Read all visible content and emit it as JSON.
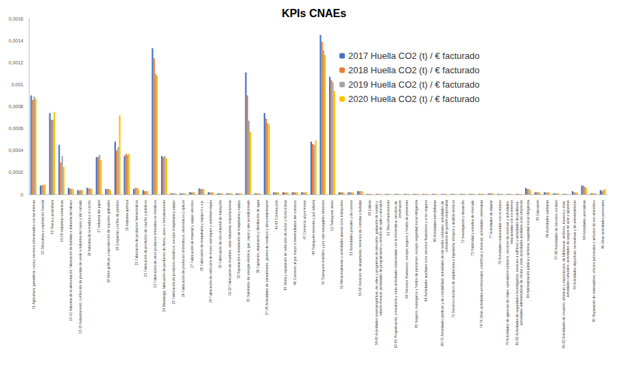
{
  "chart_data": {
    "type": "bar",
    "title": "KPIs CNAEs",
    "categories": [
      "01 Agricultura, ganadería, caza y servicios relacionados con las mismas",
      "02 Silvicultura y explotación forestal",
      "03 Pesca y acuicultura",
      "05-09 Industrias extractivas",
      "10-12 Industria de la alimentación, fabricación de bebidas e industria del tabaco",
      "13-15 Industria textil, confección de prendas de vestir e industria del cuero y del calzado",
      "16 Industria de la madera y el corcho",
      "17 Industria del papel",
      "18 Artes gráficas y reproducción de soportes grabados",
      "19 Coquerías y refino de petróleo",
      "20 Industria química",
      "21 Fabricación de productos farmacéuticos",
      "22 Fabricación de productos de caucho y plásticos",
      "23 Fabricación de otros productos minerales no metálicos",
      "24 Metalurgia; fabricación de productos de hierro, acero y ferroaleaciones",
      "25 Fabricación de productos metálicos, excepto maquinaria y equipo",
      "26 Fabricación de productos informáticos, electrónicos y ópticos",
      "27 Fabricación de material y equipo eléctrico",
      "28 Fabricación de maquinaria y equipo n.c.o.p.",
      "29 Fabricación de vehículos de motor, remolques y semirremolques",
      "30 Fabricación de otro material de transporte",
      "31-32 Fabricación de muebles; otras industrias manufactureras",
      "33 Reparación e instalación de maquinaria y equipo",
      "35 Suministro de energía eléctrica, gas, vapor y aire acondicionado",
      "36 Captación, depuración y distribución de agua",
      "37-39 Actividades de saneamiento, gestión de residuos y descontaminación",
      "41-43 Construcción",
      "45 Venta y reparación de vehículos de motor y motocicletas",
      "46 Comercio al por mayor e intermediarios del comercio",
      "47 Comercio al por menor",
      "49 Transporte terrestre y por tubería",
      "50 Transporte marítimo y por vías navegables interiores",
      "51 Transporte aéreo",
      "52 Almacenamiento y actividades anexas a los transportes",
      "53 Actividades postales y de correos",
      "55-56 Servicios de alojamiento; servicios de comidas y bebidas",
      "58 Edición",
      "59-60 Actividades cinematográficas, de vídeo y programas de televisión, grabación de sonido y edición musical; actividades de programación y emisión de radio y televisión",
      "61 Telecomunicaciones",
      "62-63 Programación, consultoría y otras actividades relacionadas con la informática; servicios de información",
      "64 Servicios financieros, excepto seguros y fondos de pensiones",
      "65 Seguros, reaseguros y fondos de pensiones, excepto seguridad social obligatoria",
      "66 Actividades auxiliares a los servicios financieros y a los seguros",
      "68 Actividades inmobiliarias",
      "69-70 Actividades jurídicas y de contabilidad; actividades de las sedes centrales; actividades de consultoría de gestión empresarial",
      "71 Servicios técnicos de arquitectura e ingeniería; ensayos y análisis técnicos",
      "72 Investigación y desarrollo",
      "73 Publicidad y estudios de mercado",
      "74-75 Otras actividades profesionales, científicas y técnicas; actividades veterinarias",
      "77 Actividades de alquiler",
      "78 Actividades relacionadas con el empleo",
      "79 Actividades de agencias de viajes, operadores turísticos, servicios de reservas y actividades relacionadas con los mismos",
      "80-82 Actividades de seguridad e investigación; servicios a edificios y actividades de jardinería; actividades administrativas de oficina y otras actividades auxiliares a las empresas",
      "84 Administración pública y defensa; seguridad social obligatoria",
      "85 Educación",
      "86 Actividades sanitarias",
      "87-88 Actividades de servicios sociales",
      "90-92 Actividades de creación, artísticas y espectáculos; de bibliotecas, archivos, museos y otras actividades culturales; actividades de juegos de azar y apuestas",
      "93 Actividades deportivas, recreativas y de entretenimiento",
      "94 Actividades asociativas",
      "95 Reparación de ordenadores, efectos personales y artículos de uso doméstico",
      "96 Otras actividades personales"
    ],
    "series": [
      {
        "name": "2017 Huella CO2 (t) / € facturado",
        "color": "#4472C4",
        "values": [
          0.0009,
          8e-05,
          0.00074,
          0.00045,
          6e-05,
          4e-05,
          6e-05,
          0.00034,
          5e-05,
          0.00048,
          0.00035,
          5e-05,
          4e-05,
          0.00133,
          0.00035,
          1e-05,
          1e-05,
          2e-05,
          5.5e-05,
          2e-05,
          1e-05,
          1e-05,
          1e-05,
          0.00111,
          1e-05,
          0.00074,
          2e-05,
          2e-05,
          2e-05,
          2e-05,
          0.00048,
          0.00145,
          0.00107,
          2e-05,
          2e-05,
          3e-05,
          5e-06,
          5e-06,
          5e-06,
          5e-06,
          5e-06,
          5e-06,
          5e-06,
          5e-06,
          5e-06,
          5e-06,
          5e-06,
          5e-06,
          5e-06,
          1e-05,
          5e-06,
          5e-06,
          5e-06,
          6e-05,
          2e-05,
          2e-05,
          1e-05,
          5e-06,
          3e-05,
          8e-05,
          1e-05,
          4e-05
        ]
      },
      {
        "name": "2018 Huella CO2 (t) / € facturado",
        "color": "#ED7D31",
        "values": [
          0.00086,
          8.5e-05,
          0.00068,
          0.00029,
          5.5e-05,
          3.5e-05,
          5.5e-05,
          0.00034,
          5e-05,
          0.0004,
          0.00037,
          6e-05,
          3e-05,
          0.00124,
          0.00034,
          1e-05,
          1e-05,
          2e-05,
          5e-05,
          2e-05,
          1e-05,
          1e-05,
          1e-05,
          0.0009,
          1e-05,
          0.00069,
          2e-05,
          2e-05,
          2e-05,
          2e-05,
          0.00046,
          0.00139,
          0.00104,
          2e-05,
          2e-05,
          3e-05,
          5e-06,
          5e-06,
          5e-06,
          5e-06,
          5e-06,
          5e-06,
          5e-06,
          5e-06,
          5e-06,
          5e-06,
          5e-06,
          5e-06,
          5e-06,
          1e-05,
          5e-06,
          5e-06,
          5e-06,
          5e-05,
          2e-05,
          2e-05,
          1e-05,
          5e-06,
          2e-05,
          8e-05,
          1e-05,
          3e-05
        ]
      },
      {
        "name": "2019 Huella CO2 (t) / € facturado",
        "color": "#A5A5A5",
        "values": [
          0.00089,
          8.5e-05,
          0.00068,
          0.00035,
          5e-05,
          4e-05,
          5.5e-05,
          0.00036,
          5e-05,
          0.00043,
          0.00036,
          6e-05,
          3e-05,
          0.0011,
          0.00035,
          1e-05,
          1e-05,
          2e-05,
          5e-05,
          2e-05,
          1e-05,
          1e-05,
          1e-05,
          0.00067,
          1e-05,
          0.00065,
          2e-05,
          2e-05,
          2e-05,
          2e-05,
          0.00045,
          0.00131,
          0.00102,
          2e-05,
          2e-05,
          3e-05,
          5e-06,
          5e-06,
          5e-06,
          5e-06,
          5e-06,
          5e-06,
          5e-06,
          5e-06,
          5e-06,
          5e-06,
          5e-06,
          5e-06,
          5e-06,
          1e-05,
          5e-06,
          5e-06,
          5e-06,
          5e-05,
          2e-05,
          2e-05,
          1e-05,
          5e-06,
          2e-05,
          7e-05,
          1e-05,
          4e-05
        ]
      },
      {
        "name": "2020 Huella CO2 (t) / € facturado",
        "color": "#FFC000",
        "values": [
          0.00087,
          9e-05,
          0.00075,
          0.00025,
          5e-05,
          4e-05,
          5e-05,
          0.00031,
          4e-05,
          0.00072,
          0.00037,
          5e-05,
          3e-05,
          0.00108,
          0.00033,
          1e-05,
          1e-05,
          2e-05,
          5e-05,
          2e-05,
          1e-05,
          1e-05,
          1e-05,
          0.00057,
          1e-05,
          0.00064,
          2e-05,
          2e-05,
          2e-05,
          2e-05,
          0.00049,
          0.00127,
          0.00094,
          2e-05,
          2e-05,
          3e-05,
          5e-06,
          5e-06,
          5e-06,
          5e-06,
          5e-06,
          5e-06,
          5e-06,
          5e-06,
          5e-06,
          5e-06,
          5e-06,
          5e-06,
          5e-06,
          1e-05,
          5e-06,
          5e-06,
          5e-06,
          4e-05,
          2e-05,
          2e-05,
          1e-05,
          5e-06,
          2e-05,
          6e-05,
          1e-05,
          5e-05
        ]
      }
    ],
    "ylim": [
      0,
      0.0016
    ],
    "yticks": [
      0,
      {
        "value": 0.0002,
        "label": "0,0002"
      },
      {
        "value": 0.0004,
        "label": "0,0004"
      },
      {
        "value": 0.0006,
        "label": "0,0006"
      },
      {
        "value": 0.0008,
        "label": "0,0008"
      },
      {
        "value": 0.001,
        "label": "0,001"
      },
      {
        "value": 0.0012,
        "label": "0,0012"
      },
      {
        "value": 0.0014,
        "label": "0,0014"
      },
      {
        "value": 0.0016,
        "label": "0,0016"
      }
    ],
    "grid": false,
    "legend": "upper right"
  }
}
